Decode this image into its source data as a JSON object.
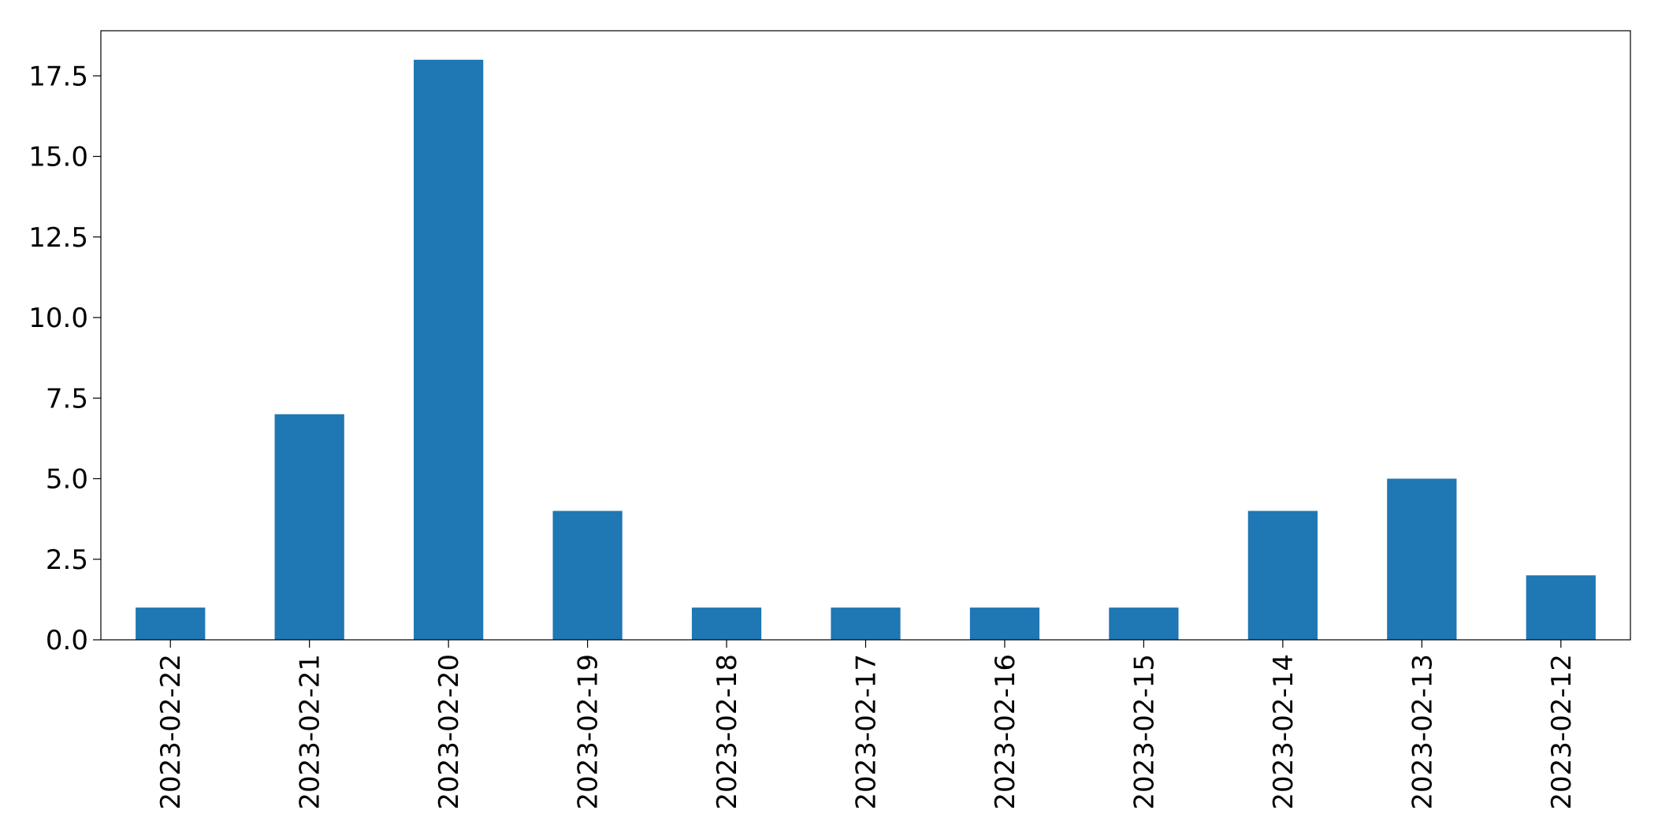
{
  "chart_data": {
    "type": "bar",
    "title": "",
    "xlabel": "",
    "ylabel": "",
    "categories": [
      "2023-02-22",
      "2023-02-21",
      "2023-02-20",
      "2023-02-19",
      "2023-02-18",
      "2023-02-17",
      "2023-02-16",
      "2023-02-15",
      "2023-02-14",
      "2023-02-13",
      "2023-02-12"
    ],
    "values": [
      1,
      7,
      18,
      4,
      1,
      1,
      1,
      1,
      4,
      5,
      2
    ],
    "ylim": [
      0,
      18.9
    ],
    "yticks": [
      0.0,
      2.5,
      5.0,
      7.5,
      10.0,
      12.5,
      15.0,
      17.5
    ],
    "ytick_labels": [
      "0.0",
      "2.5",
      "5.0",
      "7.5",
      "10.0",
      "12.5",
      "15.0",
      "17.5"
    ],
    "grid": false,
    "legend": "none",
    "bar_color": "#1f77b4"
  }
}
